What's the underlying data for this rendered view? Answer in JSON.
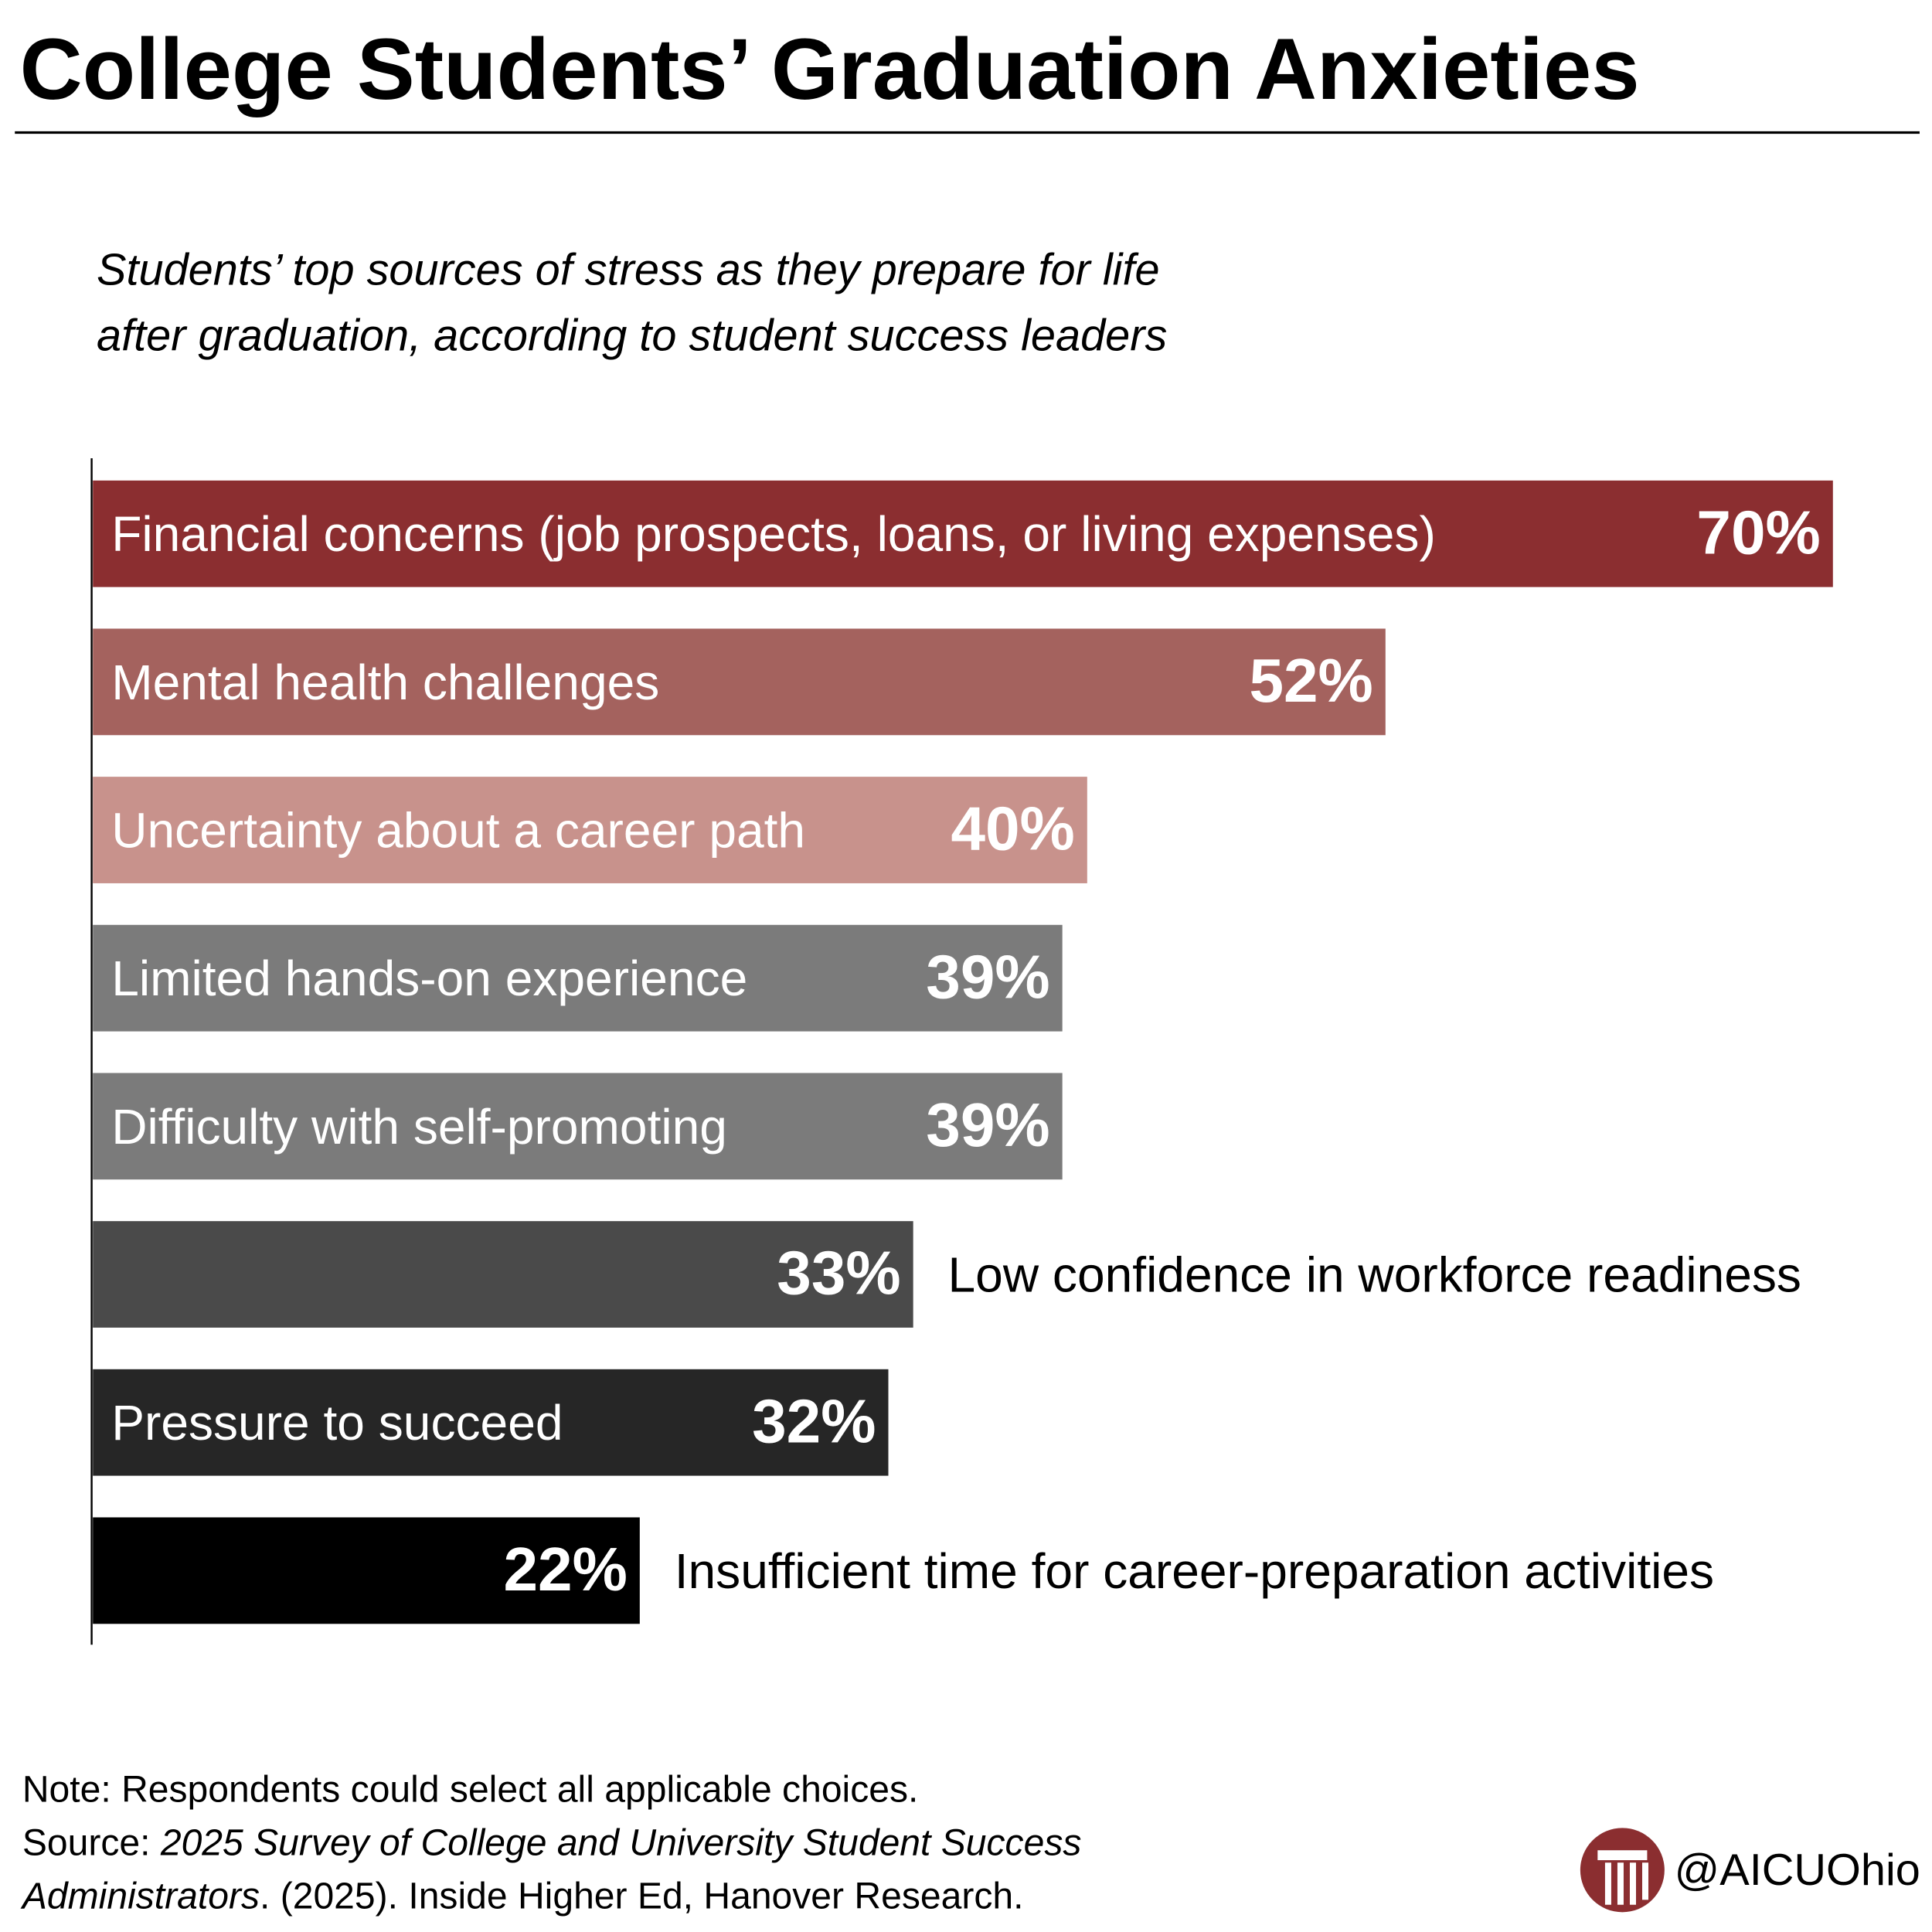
{
  "chart_data": {
    "type": "bar",
    "orientation": "horizontal",
    "title": "College Students’ Graduation Anxieties",
    "subtitle": [
      "Students’ top sources of stress as they prepare for life",
      "after graduation, according to student success leaders"
    ],
    "categories": [
      "Financial concerns (job prospects, loans, or living expenses)",
      "Mental health challenges",
      "Uncertainty about a career path",
      "Limited hands-on experience",
      "Difficulty with self-promoting",
      "Low confidence in workforce readiness",
      "Pressure to succeed",
      "Insufficient time for career-preparation activities"
    ],
    "values": [
      70,
      52,
      40,
      39,
      39,
      33,
      32,
      22
    ],
    "value_labels": [
      "70%",
      "52%",
      "40%",
      "39%",
      "39%",
      "33%",
      "32%",
      "22%"
    ],
    "colors": [
      "#8b2e30",
      "#a4625e",
      "#c8928c",
      "#7b7b7b",
      "#7b7b7b",
      "#4a4a4a",
      "#262626",
      "#000000"
    ],
    "note": "Note: Respondents could select all applicable choices.",
    "source": {
      "label": "Source:",
      "title_line1": "2025 Survey of College and University Student Success",
      "title_line2": "Administrators",
      "rest": ". (2025). Inside Higher Ed, Hanover Research."
    },
    "handle": "@AICUOhio"
  }
}
